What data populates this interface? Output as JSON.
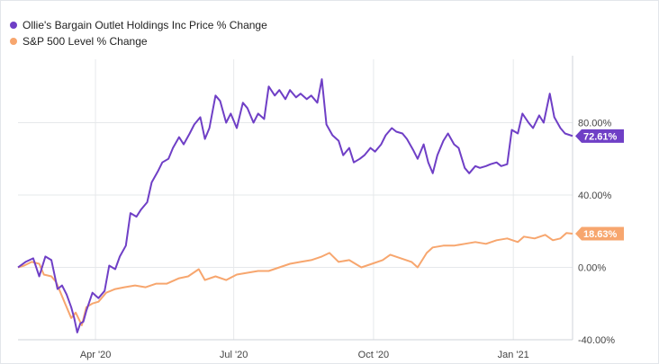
{
  "chart_data": {
    "type": "line",
    "title": "",
    "xlabel": "",
    "ylabel": "",
    "x_range": [
      "2020-02-10",
      "2021-02-09"
    ],
    "ylim": [
      -40,
      115
    ],
    "grid": true,
    "legend_position": "top-left",
    "y_ticks": [
      {
        "value": 80,
        "label": "80.00%"
      },
      {
        "value": 40,
        "label": "40.00%"
      },
      {
        "value": 0,
        "label": "0.00%"
      },
      {
        "value": -40,
        "label": "-40.00%"
      }
    ],
    "x_ticks": [
      {
        "date": "2020-04-01",
        "label": "Apr '20"
      },
      {
        "date": "2020-07-01",
        "label": "Jul '20"
      },
      {
        "date": "2020-10-01",
        "label": "Oct '20"
      },
      {
        "date": "2021-01-01",
        "label": "Jan '21"
      }
    ],
    "series": [
      {
        "name": "Ollie's Bargain Outlet Holdings Inc Price % Change",
        "color": "#6f3fc6",
        "end_label": "72.61%",
        "points": [
          [
            "2020-02-10",
            0
          ],
          [
            "2020-02-15",
            3
          ],
          [
            "2020-02-20",
            5
          ],
          [
            "2020-02-24",
            -5
          ],
          [
            "2020-02-28",
            6
          ],
          [
            "2020-03-03",
            4
          ],
          [
            "2020-03-07",
            -12
          ],
          [
            "2020-03-10",
            -10
          ],
          [
            "2020-03-13",
            -15
          ],
          [
            "2020-03-16",
            -22
          ],
          [
            "2020-03-18",
            -28
          ],
          [
            "2020-03-20",
            -36
          ],
          [
            "2020-03-22",
            -31
          ],
          [
            "2020-03-24",
            -30
          ],
          [
            "2020-03-26",
            -24
          ],
          [
            "2020-03-30",
            -14
          ],
          [
            "2020-04-03",
            -17
          ],
          [
            "2020-04-07",
            -13
          ],
          [
            "2020-04-10",
            1
          ],
          [
            "2020-04-14",
            -1
          ],
          [
            "2020-04-17",
            6
          ],
          [
            "2020-04-21",
            12
          ],
          [
            "2020-04-24",
            30
          ],
          [
            "2020-04-28",
            28
          ],
          [
            "2020-05-01",
            32
          ],
          [
            "2020-05-05",
            36
          ],
          [
            "2020-05-08",
            47
          ],
          [
            "2020-05-12",
            53
          ],
          [
            "2020-05-15",
            58
          ],
          [
            "2020-05-19",
            60
          ],
          [
            "2020-05-22",
            66
          ],
          [
            "2020-05-26",
            72
          ],
          [
            "2020-05-29",
            68
          ],
          [
            "2020-06-02",
            74
          ],
          [
            "2020-06-05",
            79
          ],
          [
            "2020-06-09",
            83
          ],
          [
            "2020-06-12",
            71
          ],
          [
            "2020-06-15",
            77
          ],
          [
            "2020-06-19",
            95
          ],
          [
            "2020-06-22",
            92
          ],
          [
            "2020-06-26",
            80
          ],
          [
            "2020-06-29",
            85
          ],
          [
            "2020-07-03",
            77
          ],
          [
            "2020-07-07",
            91
          ],
          [
            "2020-07-10",
            88
          ],
          [
            "2020-07-14",
            80
          ],
          [
            "2020-07-17",
            85
          ],
          [
            "2020-07-21",
            82
          ],
          [
            "2020-07-24",
            100
          ],
          [
            "2020-07-28",
            95
          ],
          [
            "2020-07-31",
            98
          ],
          [
            "2020-08-04",
            93
          ],
          [
            "2020-08-07",
            98
          ],
          [
            "2020-08-11",
            94
          ],
          [
            "2020-08-14",
            96
          ],
          [
            "2020-08-18",
            93
          ],
          [
            "2020-08-21",
            95
          ],
          [
            "2020-08-25",
            91
          ],
          [
            "2020-08-28",
            104
          ],
          [
            "2020-08-31",
            79
          ],
          [
            "2020-09-04",
            73
          ],
          [
            "2020-09-08",
            70
          ],
          [
            "2020-09-11",
            62
          ],
          [
            "2020-09-15",
            66
          ],
          [
            "2020-09-18",
            58
          ],
          [
            "2020-09-22",
            60
          ],
          [
            "2020-09-25",
            62
          ],
          [
            "2020-09-29",
            66
          ],
          [
            "2020-10-02",
            64
          ],
          [
            "2020-10-06",
            68
          ],
          [
            "2020-10-09",
            73
          ],
          [
            "2020-10-13",
            77
          ],
          [
            "2020-10-16",
            75
          ],
          [
            "2020-10-20",
            74
          ],
          [
            "2020-10-23",
            71
          ],
          [
            "2020-10-27",
            65
          ],
          [
            "2020-10-30",
            60
          ],
          [
            "2020-11-03",
            68
          ],
          [
            "2020-11-06",
            58
          ],
          [
            "2020-11-09",
            52
          ],
          [
            "2020-11-12",
            62
          ],
          [
            "2020-11-16",
            70
          ],
          [
            "2020-11-19",
            74
          ],
          [
            "2020-11-23",
            68
          ],
          [
            "2020-11-26",
            66
          ],
          [
            "2020-11-30",
            55
          ],
          [
            "2020-12-03",
            52
          ],
          [
            "2020-12-07",
            56
          ],
          [
            "2020-12-10",
            55
          ],
          [
            "2020-12-14",
            56
          ],
          [
            "2020-12-17",
            57
          ],
          [
            "2020-12-21",
            58
          ],
          [
            "2020-12-24",
            56
          ],
          [
            "2020-12-28",
            57
          ],
          [
            "2020-12-31",
            76
          ],
          [
            "2021-01-04",
            74
          ],
          [
            "2021-01-07",
            85
          ],
          [
            "2021-01-11",
            80
          ],
          [
            "2021-01-14",
            77
          ],
          [
            "2021-01-18",
            84
          ],
          [
            "2021-01-21",
            80
          ],
          [
            "2021-01-25",
            96
          ],
          [
            "2021-01-28",
            83
          ],
          [
            "2021-02-01",
            77
          ],
          [
            "2021-02-04",
            74
          ],
          [
            "2021-02-09",
            72.61
          ]
        ]
      },
      {
        "name": "S&P 500 Level % Change",
        "color": "#f7a66e",
        "end_label": "18.63%",
        "points": [
          [
            "2020-02-10",
            0
          ],
          [
            "2020-02-14",
            1
          ],
          [
            "2020-02-19",
            3
          ],
          [
            "2020-02-24",
            2
          ],
          [
            "2020-02-27",
            -4
          ],
          [
            "2020-03-03",
            -5
          ],
          [
            "2020-03-06",
            -8
          ],
          [
            "2020-03-09",
            -14
          ],
          [
            "2020-03-12",
            -20
          ],
          [
            "2020-03-16",
            -28
          ],
          [
            "2020-03-19",
            -25
          ],
          [
            "2020-03-23",
            -32
          ],
          [
            "2020-03-26",
            -22
          ],
          [
            "2020-03-30",
            -20
          ],
          [
            "2020-04-03",
            -19
          ],
          [
            "2020-04-08",
            -14
          ],
          [
            "2020-04-14",
            -12
          ],
          [
            "2020-04-20",
            -11
          ],
          [
            "2020-04-27",
            -10
          ],
          [
            "2020-05-04",
            -11
          ],
          [
            "2020-05-11",
            -9
          ],
          [
            "2020-05-18",
            -9
          ],
          [
            "2020-05-26",
            -6
          ],
          [
            "2020-06-01",
            -5
          ],
          [
            "2020-06-08",
            -1
          ],
          [
            "2020-06-12",
            -7
          ],
          [
            "2020-06-19",
            -5
          ],
          [
            "2020-06-26",
            -7
          ],
          [
            "2020-07-03",
            -4
          ],
          [
            "2020-07-10",
            -3
          ],
          [
            "2020-07-17",
            -2
          ],
          [
            "2020-07-24",
            -2
          ],
          [
            "2020-07-31",
            0
          ],
          [
            "2020-08-07",
            2
          ],
          [
            "2020-08-14",
            3
          ],
          [
            "2020-08-21",
            4
          ],
          [
            "2020-08-28",
            6
          ],
          [
            "2020-09-02",
            8
          ],
          [
            "2020-09-08",
            3
          ],
          [
            "2020-09-15",
            4
          ],
          [
            "2020-09-23",
            0
          ],
          [
            "2020-09-30",
            2
          ],
          [
            "2020-10-07",
            4
          ],
          [
            "2020-10-12",
            7
          ],
          [
            "2020-10-19",
            5
          ],
          [
            "2020-10-26",
            3
          ],
          [
            "2020-10-30",
            0
          ],
          [
            "2020-11-05",
            8
          ],
          [
            "2020-11-09",
            11
          ],
          [
            "2020-11-16",
            12
          ],
          [
            "2020-11-23",
            12
          ],
          [
            "2020-11-30",
            13
          ],
          [
            "2020-12-07",
            14
          ],
          [
            "2020-12-14",
            13
          ],
          [
            "2020-12-21",
            15
          ],
          [
            "2020-12-28",
            16
          ],
          [
            "2021-01-04",
            14
          ],
          [
            "2021-01-08",
            17
          ],
          [
            "2021-01-15",
            16
          ],
          [
            "2021-01-22",
            18
          ],
          [
            "2021-01-27",
            15
          ],
          [
            "2021-02-01",
            16
          ],
          [
            "2021-02-05",
            19
          ],
          [
            "2021-02-09",
            18.63
          ]
        ]
      }
    ]
  }
}
